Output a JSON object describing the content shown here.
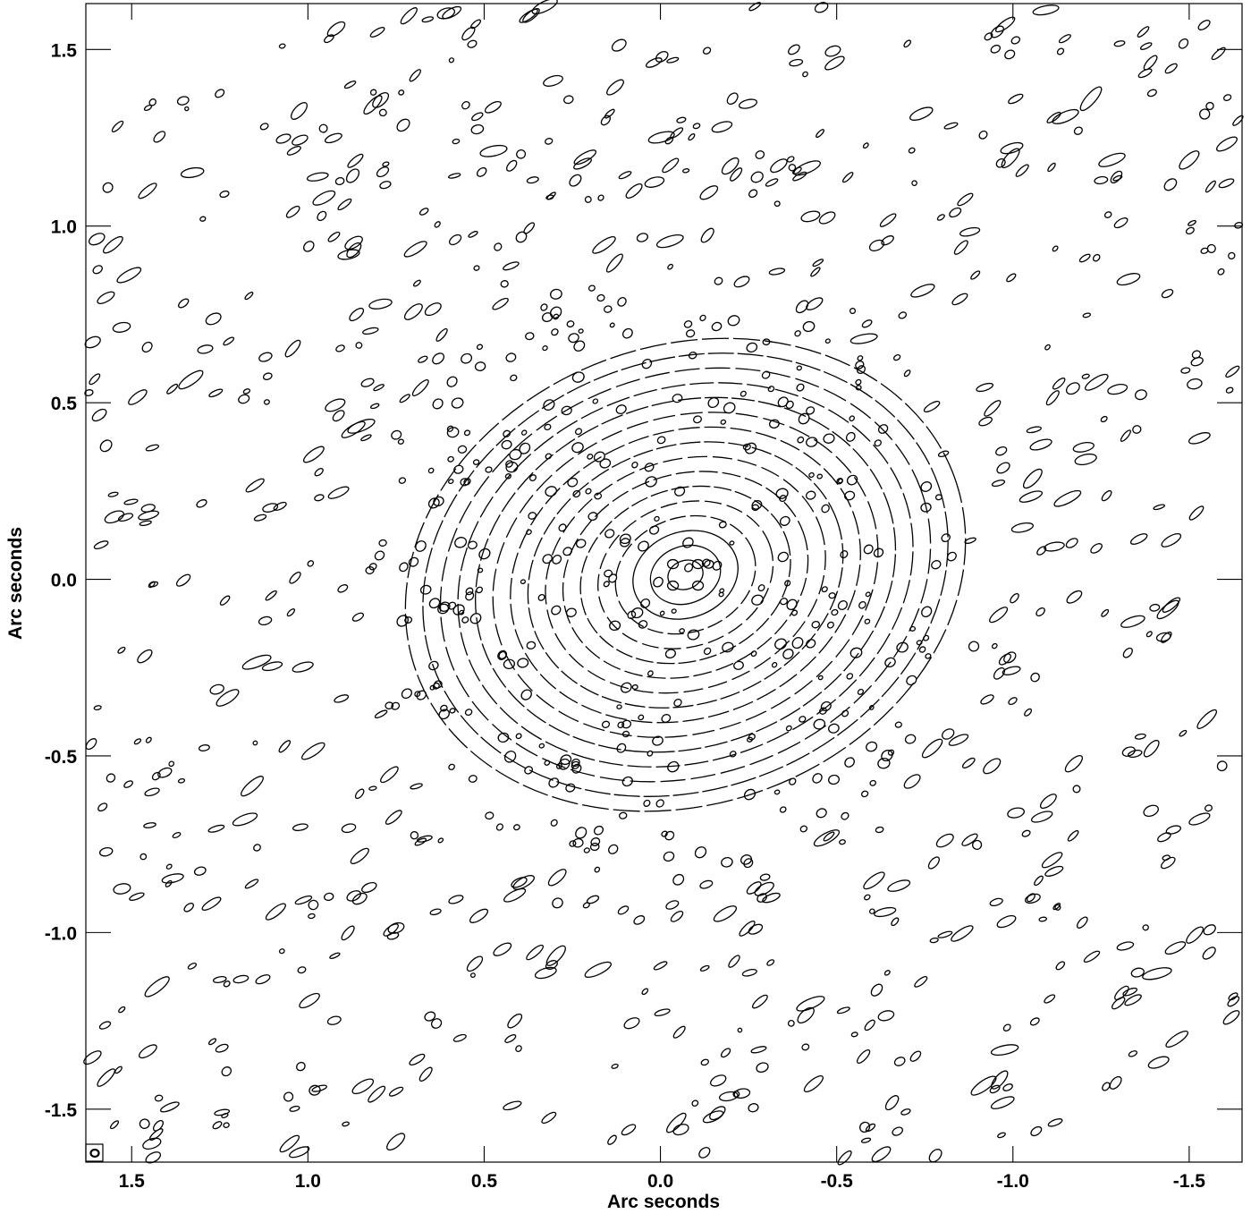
{
  "chart_data": {
    "type": "contour",
    "title": "",
    "xlabel": "Arc seconds",
    "ylabel": "Arc seconds",
    "x_axis_reversed": true,
    "xlim": [
      1.63,
      -1.65
    ],
    "ylim": [
      -1.65,
      1.63
    ],
    "x_ticks": [
      1.5,
      1.0,
      0.5,
      0.0,
      -0.5,
      -1.0,
      -1.5
    ],
    "x_tick_labels": [
      "1.5",
      "1.0",
      "0.5",
      "0.0",
      "-0.5",
      "-1.0",
      "-1.5"
    ],
    "y_ticks": [
      1.5,
      1.0,
      0.5,
      0.0,
      -0.5,
      -1.0,
      -1.5
    ],
    "y_tick_labels": [
      "1.5",
      "1.0",
      "0.5",
      "0.0",
      "-0.5",
      "-1.0",
      "-1.5"
    ],
    "grid": false,
    "pattern": {
      "center": [
        0.0,
        0.0
      ],
      "description": "interferometric sidelobe (dirty beam) contour pattern, dense concentric fringes at center with diagonal bands extending to upper-left and lower-right",
      "band_orientation_deg": 30,
      "core_extent_arcsec": 0.55
    },
    "beam_marker": {
      "position": "bottom-left"
    }
  }
}
